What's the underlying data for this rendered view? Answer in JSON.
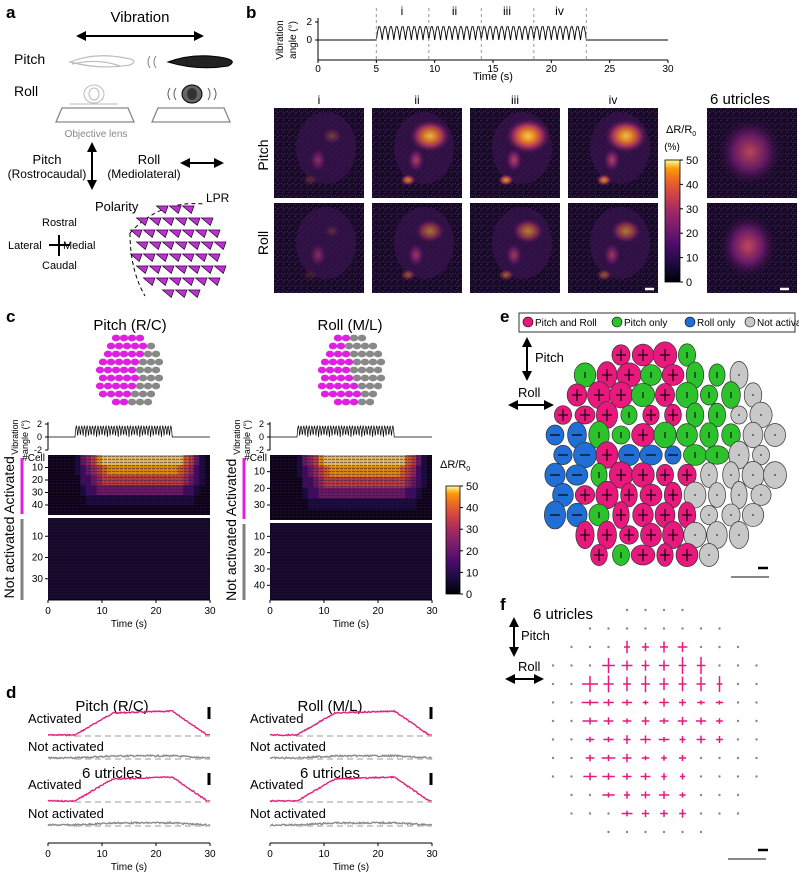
{
  "panel_labels": [
    "a",
    "b",
    "c",
    "d",
    "e",
    "f"
  ],
  "panel_a": {
    "title": "Vibration",
    "row1": "Pitch",
    "row2": "Roll",
    "lens": "Objective lens",
    "pitch_axis": "Pitch",
    "pitch_axis_sub": "(Rostrocaudal)",
    "roll_axis": "Roll",
    "roll_axis_sub": "(Mediolateral)",
    "polarity": "Polarity",
    "lpr": "LPR",
    "rostral": "Rostral",
    "caudal": "Caudal",
    "lateral": "Lateral",
    "medial": "Medial",
    "triangle_color": "#c02fd6"
  },
  "panel_b": {
    "ylabel1": "Vibration",
    "ylabel2": "angle (°)",
    "xlabel": "Time (s)",
    "segments": [
      "i",
      "ii",
      "iii",
      "iv"
    ],
    "col_headers": [
      "i",
      "ii",
      "iii",
      "iv"
    ],
    "row_labels": [
      "Pitch",
      "Roll"
    ],
    "utricles_title": "6 utricles",
    "cbar_label": "ΔR/R",
    "cbar_sub": "0",
    "cbar_unit": "(%)",
    "cbar_ticks": [
      "50",
      "40",
      "30",
      "20",
      "10",
      "0"
    ]
  },
  "panel_c": {
    "pitch_title": "Pitch (R/C)",
    "roll_title": "Roll (M/L)",
    "angle_label1": "Vibration",
    "angle_label2": "angle (°)",
    "cell_label": "#Cell",
    "activated": "Activated",
    "not_activated": "Not activated",
    "xlabel": "Time (s)",
    "cbar_label": "ΔR/R",
    "cbar_sub": "0",
    "cbar_ticks": [
      "50",
      "40",
      "30",
      "20",
      "10",
      "0"
    ],
    "left_act_ticks": [
      "10",
      "20",
      "30",
      "40"
    ],
    "left_not_ticks": [
      "10",
      "20",
      "30"
    ],
    "right_act_ticks": [
      "10",
      "20",
      "30"
    ],
    "right_not_ticks": [
      "10",
      "20",
      "30",
      "40"
    ],
    "colors": {
      "activated": "#e020e0",
      "not_activated": "#808080"
    }
  },
  "panel_d": {
    "pitch_title": "Pitch (R/C)",
    "roll_title": "Roll (M/L)",
    "utricles_title": "6 utricles",
    "activated": "Activated",
    "not_activated": "Not activated",
    "xlabel": "Time (s)",
    "colors": {
      "activated": "#e0237a",
      "not_activated": "#8a8a8a"
    }
  },
  "panel_e": {
    "legend": [
      "Pitch and Roll",
      "Pitch only",
      "Roll only",
      "Not activated"
    ],
    "pitch": "Pitch",
    "roll": "Roll",
    "colors": {
      "both": "#e8197d",
      "pitch": "#2bc22b",
      "roll": "#1f6fd6",
      "none": "#c8c8c8"
    }
  },
  "panel_f": {
    "title": "6 utricles",
    "pitch": "Pitch",
    "roll": "Roll"
  },
  "axis_ticks": {
    "time_b": [
      "0",
      "5",
      "10",
      "15",
      "20",
      "25",
      "30"
    ],
    "time_cd": [
      "0",
      "10",
      "20",
      "30"
    ],
    "angle": [
      "2",
      "0",
      "-2"
    ]
  }
}
